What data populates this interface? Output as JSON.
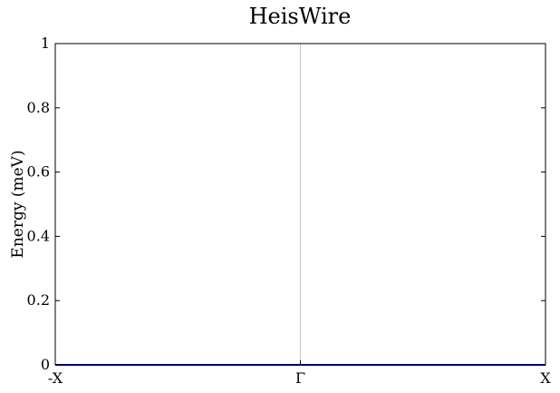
{
  "chart_data": {
    "type": "line",
    "title": "HeisWire",
    "xlabel": "",
    "ylabel": "Energy (meV)",
    "x_tick_labels": [
      "-X",
      "Γ",
      "X"
    ],
    "x_ticks": [
      -1,
      0,
      1
    ],
    "xlim": [
      -1,
      1
    ],
    "ylim": [
      0,
      1
    ],
    "y_ticks": [
      0,
      0.2,
      0.4,
      0.6,
      0.8,
      1
    ],
    "y_tick_labels": [
      "0",
      "0.2",
      "0.4",
      "0.6",
      "0.8",
      "1"
    ],
    "vertical_markers": [
      0
    ],
    "grid": false,
    "series": [
      {
        "x": [
          -1,
          -0.5,
          0,
          0.5,
          1
        ],
        "y": [
          0,
          0,
          0,
          0,
          0
        ],
        "color": "#0000cc"
      }
    ],
    "colors": {
      "series": "#0000cc",
      "marker_line": "#cccccc",
      "axis": "#000000"
    }
  }
}
